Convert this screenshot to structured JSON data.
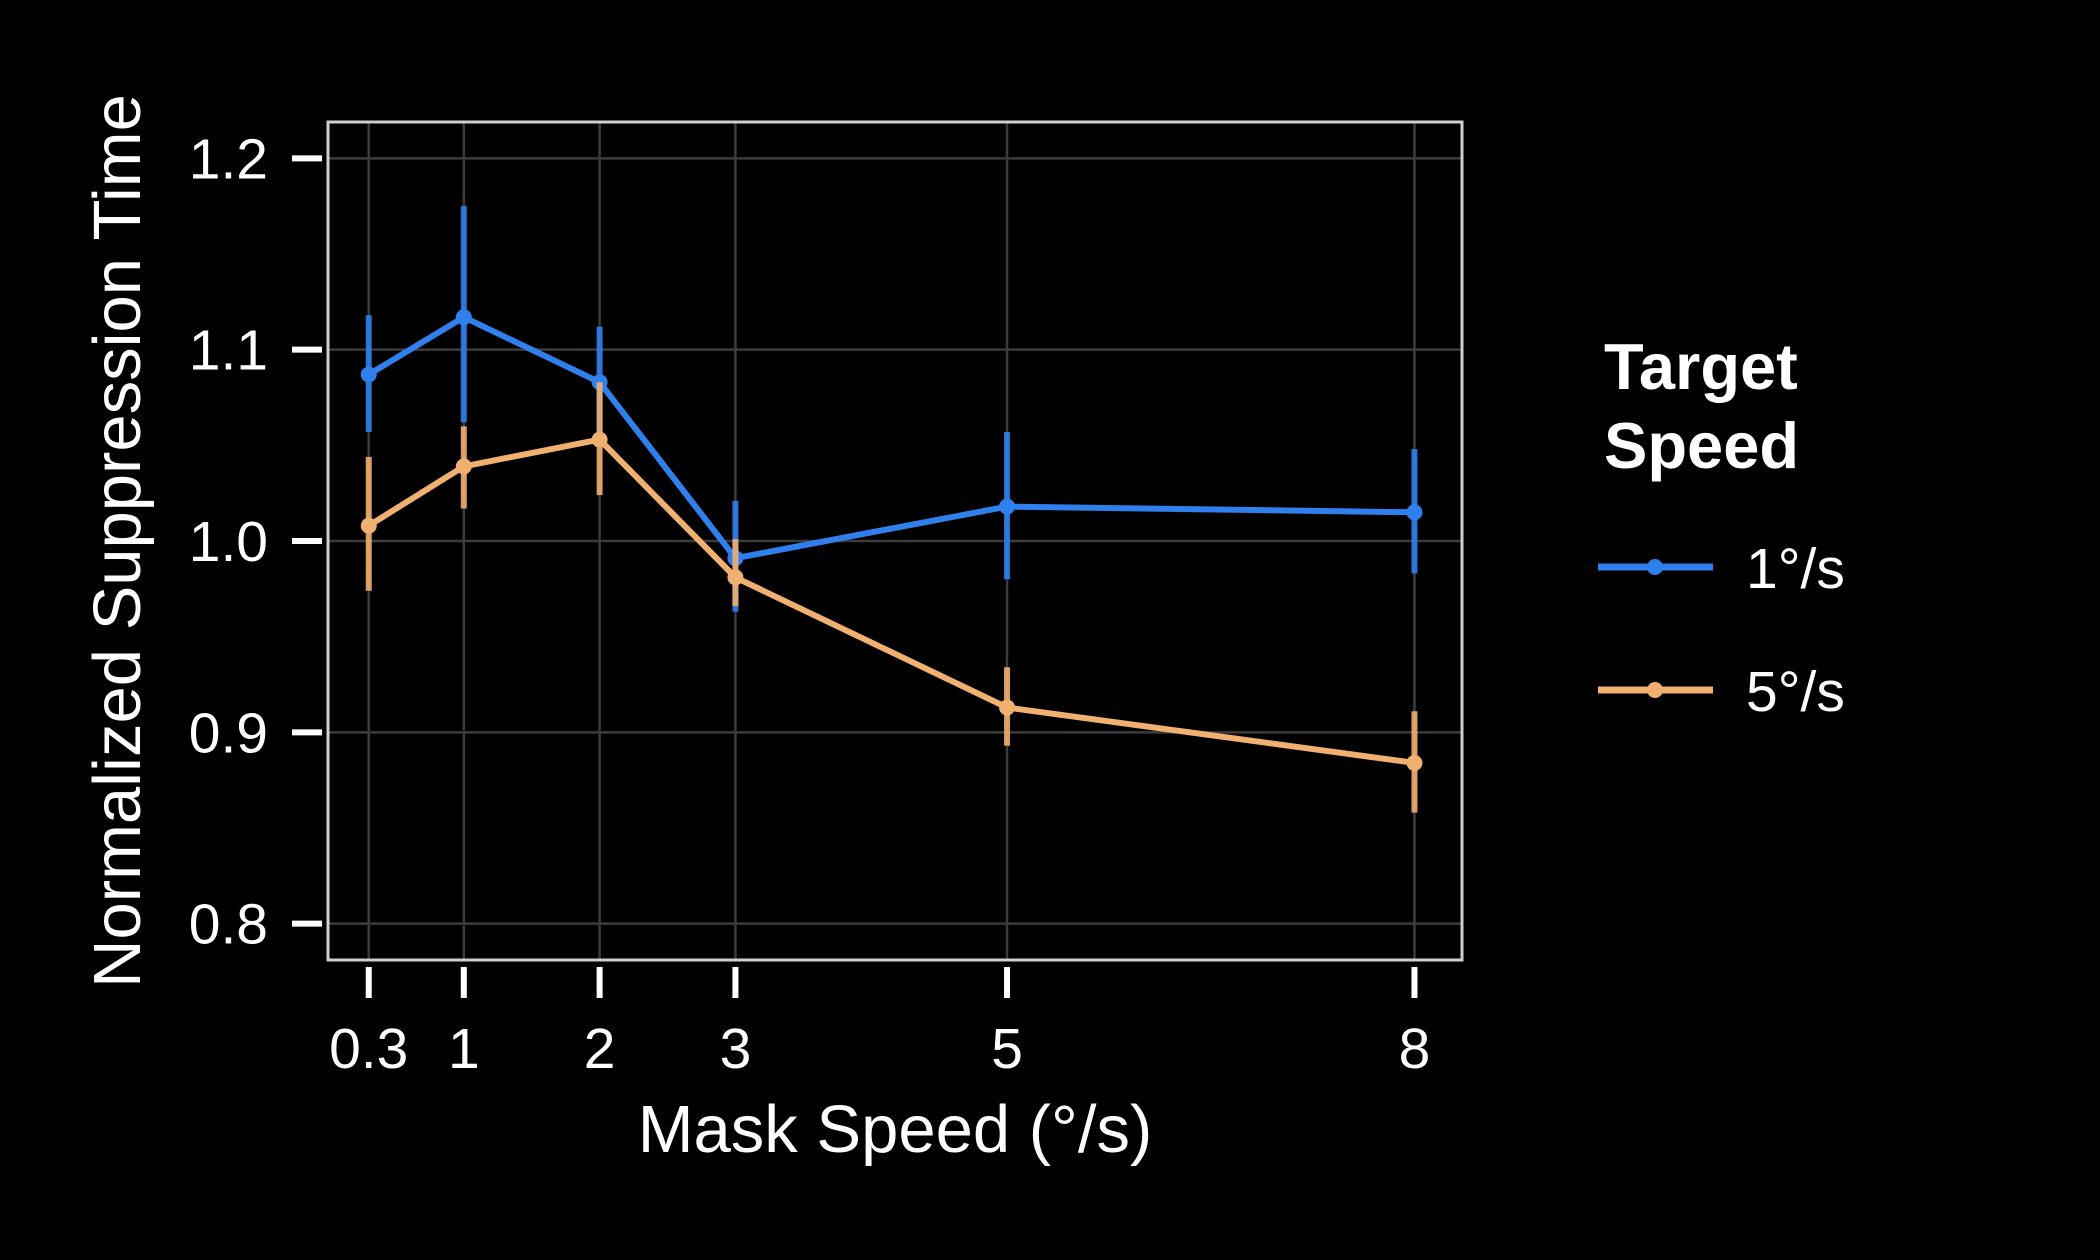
{
  "chart_data": {
    "type": "line",
    "title": "",
    "xlabel": "Mask Speed (°/s)",
    "ylabel": "Normalized Suppression Time",
    "x": [
      0.3,
      1,
      2,
      3,
      5,
      8
    ],
    "x_tick_labels": [
      "0.3",
      "1",
      "2",
      "3",
      "5",
      "8"
    ],
    "y_ticks": [
      0.8,
      0.9,
      1.0,
      1.1,
      1.2
    ],
    "y_tick_labels": [
      "0.8",
      "0.9",
      "1.0",
      "1.1",
      "1.2"
    ],
    "xlim": [
      0.0,
      8.35
    ],
    "ylim": [
      0.781,
      1.219
    ],
    "grid": true,
    "legend": {
      "title_lines": [
        "Target",
        "Speed"
      ],
      "placement": "right"
    },
    "series": [
      {
        "name": "1°/s",
        "color": "#2f80ed",
        "values": [
          1.087,
          1.117,
          1.083,
          0.991,
          1.018,
          1.015
        ],
        "error_low": [
          1.057,
          1.062,
          1.054,
          0.963,
          0.98,
          0.983
        ],
        "error_high": [
          1.118,
          1.175,
          1.112,
          1.021,
          1.057,
          1.048
        ]
      },
      {
        "name": "5°/s",
        "color": "#f0b070",
        "values": [
          1.008,
          1.039,
          1.053,
          0.981,
          0.913,
          0.884
        ],
        "error_low": [
          0.974,
          1.017,
          1.024,
          0.966,
          0.893,
          0.858
        ],
        "error_high": [
          1.044,
          1.06,
          1.083,
          1.001,
          0.934,
          0.911
        ]
      }
    ]
  }
}
